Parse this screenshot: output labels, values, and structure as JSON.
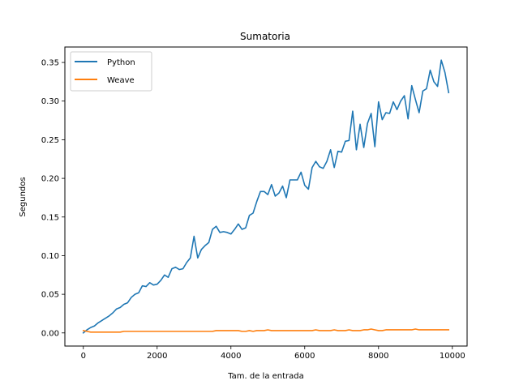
{
  "chart_data": {
    "type": "line",
    "title": "Sumatoria",
    "xlabel": "Tam. de la entrada",
    "ylabel": "Segundos",
    "xlim": [
      -500,
      10400
    ],
    "ylim": [
      -0.017,
      0.37
    ],
    "xticks": [
      0,
      2000,
      4000,
      6000,
      8000,
      10000
    ],
    "yticks": [
      0.0,
      0.05,
      0.1,
      0.15,
      0.2,
      0.25,
      0.3,
      0.35
    ],
    "xtick_labels": [
      "0",
      "2000",
      "4000",
      "6000",
      "8000",
      "10000"
    ],
    "ytick_labels": [
      "0.00",
      "0.05",
      "0.10",
      "0.15",
      "0.20",
      "0.25",
      "0.30",
      "0.35"
    ],
    "grid": false,
    "legend": "top-left",
    "x": [
      0,
      100,
      200,
      300,
      400,
      500,
      600,
      700,
      800,
      900,
      1000,
      1100,
      1200,
      1300,
      1400,
      1500,
      1600,
      1700,
      1800,
      1900,
      2000,
      2100,
      2200,
      2300,
      2400,
      2500,
      2600,
      2700,
      2800,
      2900,
      3000,
      3100,
      3200,
      3300,
      3400,
      3500,
      3600,
      3700,
      3800,
      3900,
      4000,
      4100,
      4200,
      4300,
      4400,
      4500,
      4600,
      4700,
      4800,
      4900,
      5000,
      5100,
      5200,
      5300,
      5400,
      5500,
      5600,
      5700,
      5800,
      5900,
      6000,
      6100,
      6200,
      6300,
      6400,
      6500,
      6600,
      6700,
      6800,
      6900,
      7000,
      7100,
      7200,
      7300,
      7400,
      7500,
      7600,
      7700,
      7800,
      7900,
      8000,
      8100,
      8200,
      8300,
      8400,
      8500,
      8600,
      8700,
      8800,
      8900,
      9000,
      9100,
      9200,
      9300,
      9400,
      9500,
      9600,
      9700,
      9800,
      9900
    ],
    "series": [
      {
        "name": "Python",
        "color": "#1f77b4",
        "values": [
          0.0,
          0.004,
          0.007,
          0.009,
          0.013,
          0.016,
          0.019,
          0.022,
          0.026,
          0.031,
          0.033,
          0.037,
          0.039,
          0.046,
          0.05,
          0.052,
          0.061,
          0.06,
          0.065,
          0.062,
          0.063,
          0.068,
          0.075,
          0.072,
          0.083,
          0.085,
          0.082,
          0.083,
          0.091,
          0.097,
          0.125,
          0.097,
          0.108,
          0.113,
          0.117,
          0.134,
          0.138,
          0.13,
          0.131,
          0.13,
          0.128,
          0.134,
          0.141,
          0.134,
          0.136,
          0.152,
          0.155,
          0.17,
          0.183,
          0.183,
          0.179,
          0.192,
          0.177,
          0.181,
          0.19,
          0.175,
          0.198,
          0.198,
          0.198,
          0.208,
          0.191,
          0.186,
          0.214,
          0.222,
          0.215,
          0.213,
          0.222,
          0.237,
          0.214,
          0.235,
          0.234,
          0.248,
          0.249,
          0.287,
          0.237,
          0.27,
          0.24,
          0.271,
          0.284,
          0.241,
          0.299,
          0.276,
          0.285,
          0.284,
          0.299,
          0.289,
          0.3,
          0.307,
          0.277,
          0.32,
          0.302,
          0.285,
          0.313,
          0.316,
          0.34,
          0.325,
          0.319,
          0.353,
          0.337,
          0.311
        ]
      },
      {
        "name": "Weave",
        "color": "#ff7f0e",
        "values": [
          0.003,
          0.002,
          0.001,
          0.001,
          0.001,
          0.001,
          0.001,
          0.001,
          0.001,
          0.001,
          0.001,
          0.002,
          0.002,
          0.002,
          0.002,
          0.002,
          0.002,
          0.002,
          0.002,
          0.002,
          0.002,
          0.002,
          0.002,
          0.002,
          0.002,
          0.002,
          0.002,
          0.002,
          0.002,
          0.002,
          0.002,
          0.002,
          0.002,
          0.002,
          0.002,
          0.002,
          0.003,
          0.003,
          0.003,
          0.003,
          0.003,
          0.003,
          0.003,
          0.002,
          0.002,
          0.003,
          0.002,
          0.003,
          0.003,
          0.003,
          0.004,
          0.003,
          0.003,
          0.003,
          0.003,
          0.003,
          0.003,
          0.003,
          0.003,
          0.003,
          0.003,
          0.003,
          0.003,
          0.004,
          0.003,
          0.003,
          0.003,
          0.003,
          0.004,
          0.003,
          0.003,
          0.003,
          0.004,
          0.003,
          0.003,
          0.003,
          0.004,
          0.004,
          0.005,
          0.004,
          0.003,
          0.003,
          0.004,
          0.004,
          0.004,
          0.004,
          0.004,
          0.004,
          0.004,
          0.004,
          0.005,
          0.004,
          0.004,
          0.004,
          0.004,
          0.004,
          0.004,
          0.004,
          0.004,
          0.004
        ]
      }
    ]
  }
}
